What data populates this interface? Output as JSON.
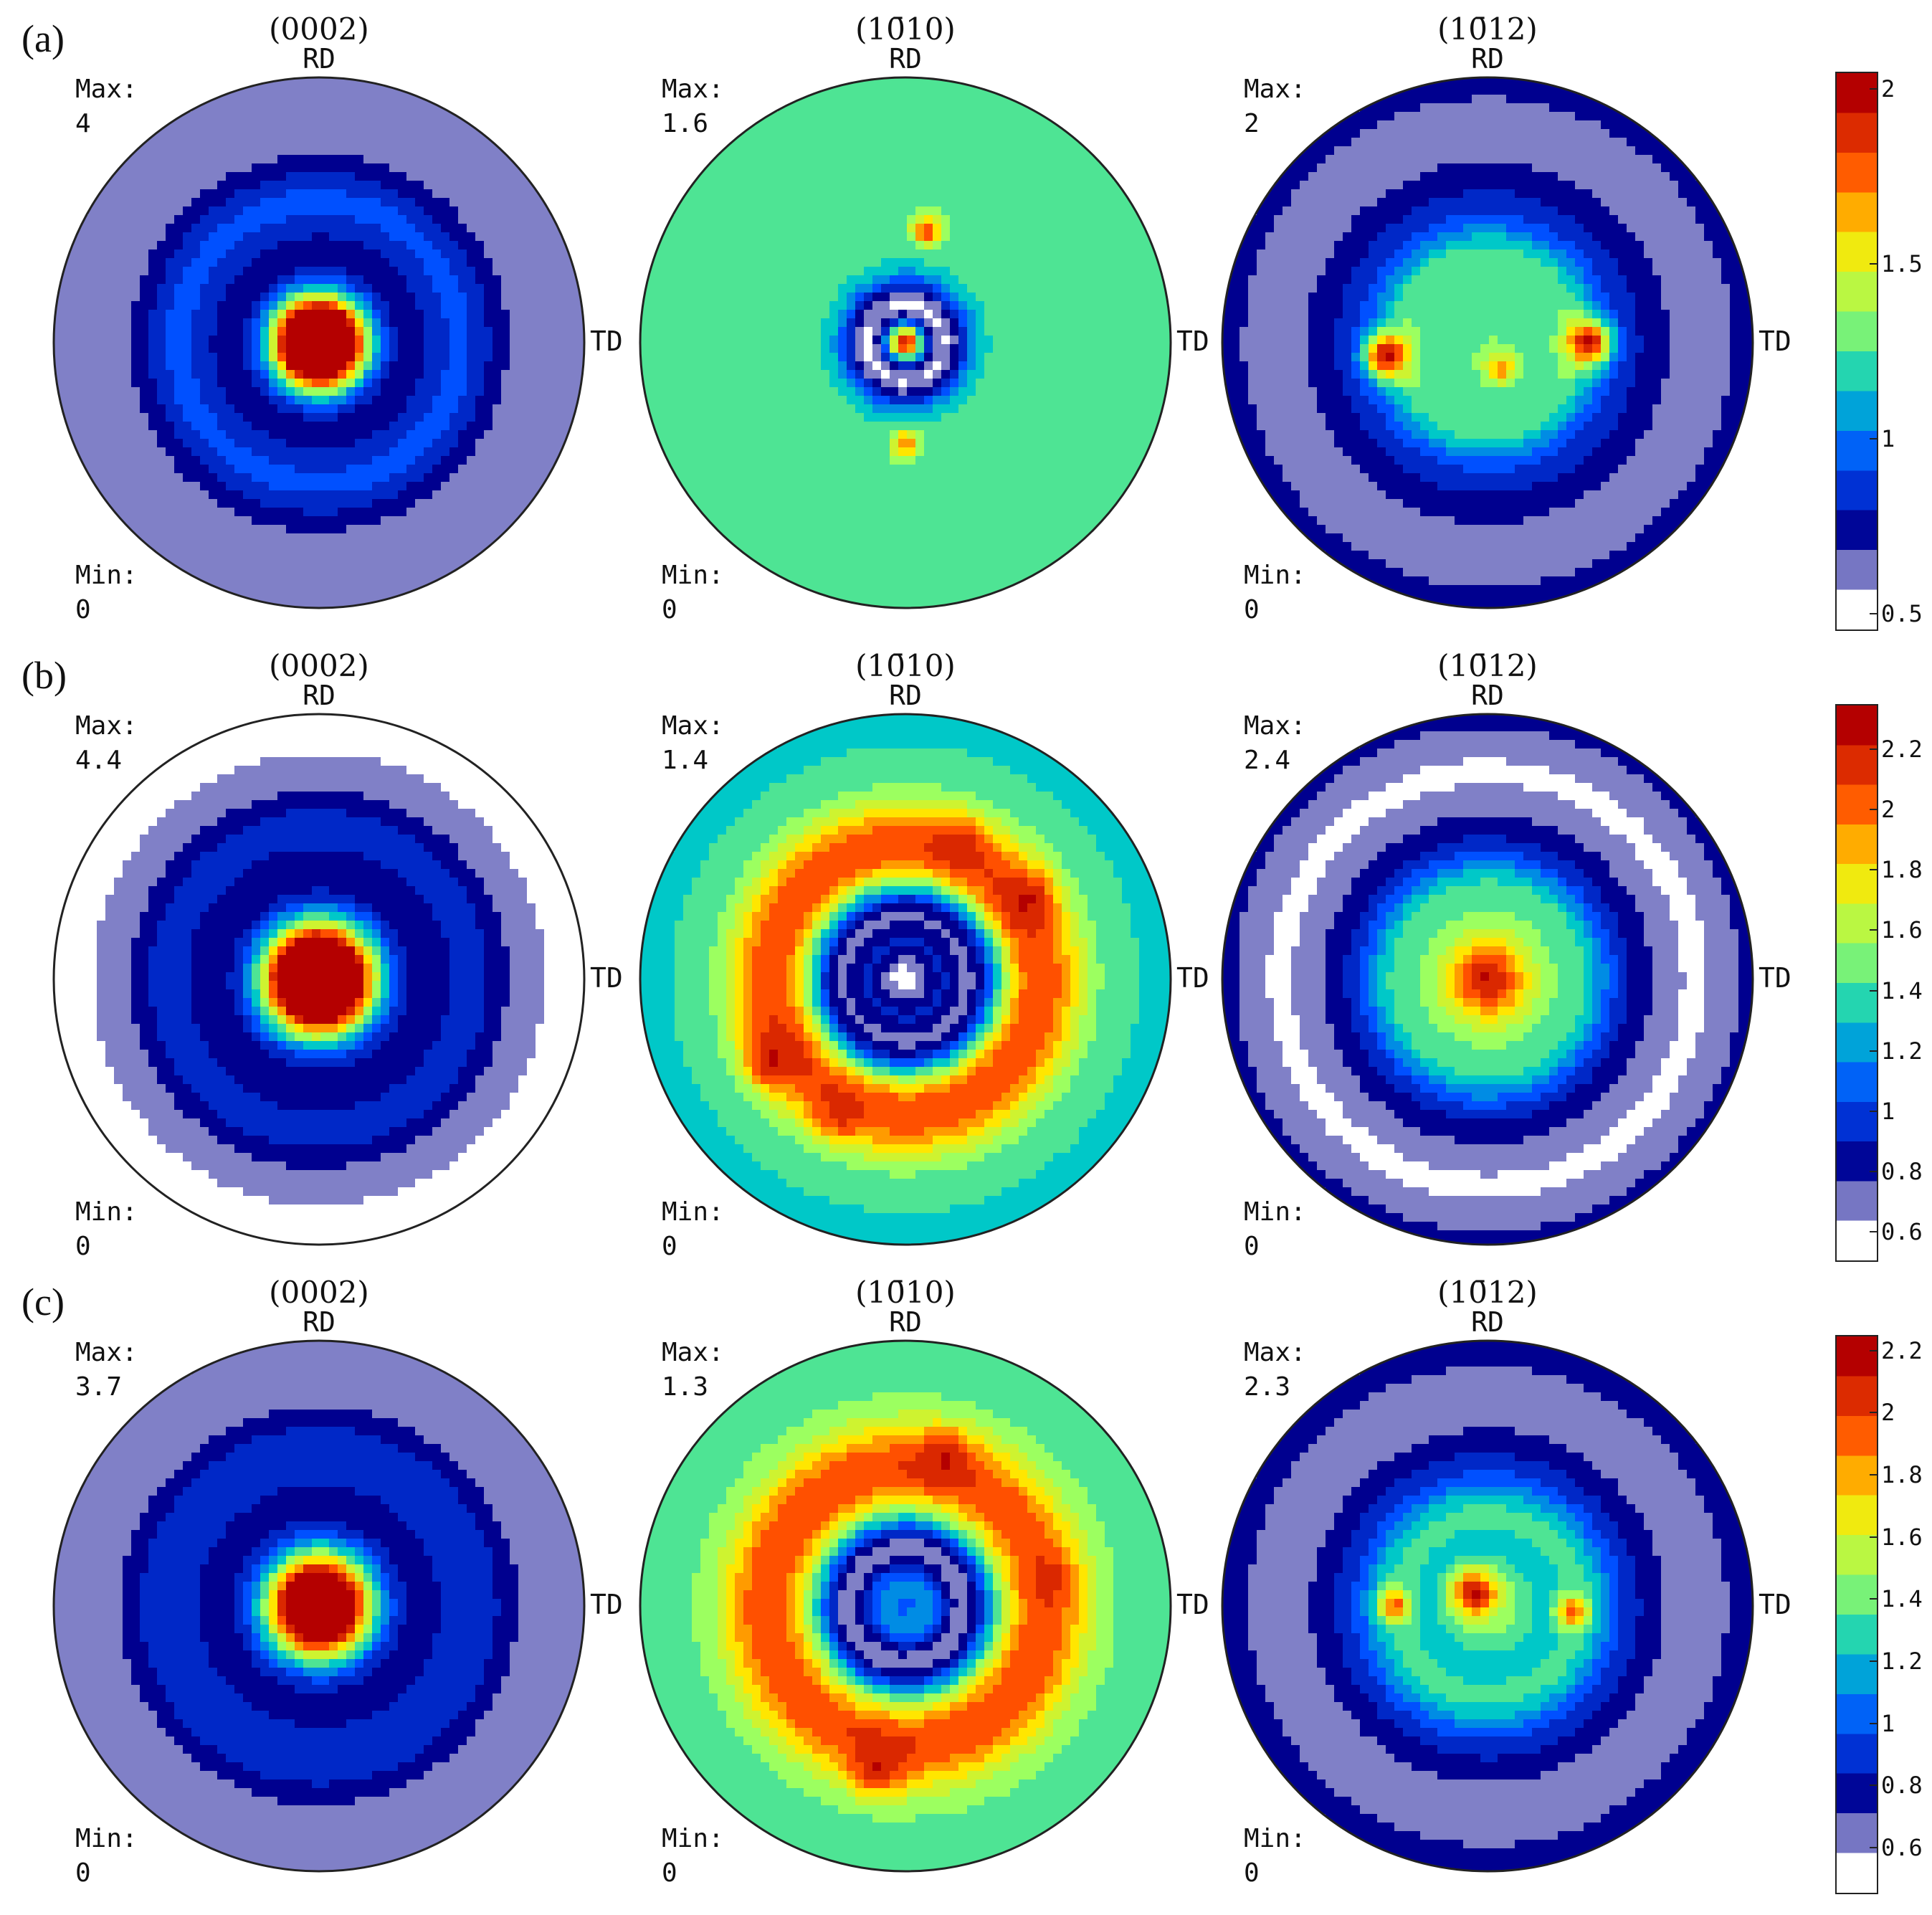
{
  "chart_data": {
    "type": "heatmap",
    "figure": "pole figures",
    "axis_labels": {
      "rd": "RD",
      "td": "TD"
    },
    "stat_labels": {
      "max": "Max:",
      "min": "Min:"
    },
    "colormap": [
      "#ffffff",
      "#00008f",
      "#0050ff",
      "#00c8c8",
      "#9cff60",
      "#ffe600",
      "#ff5000",
      "#b40000"
    ],
    "rows": [
      {
        "label": "(a)",
        "colorbar": {
          "min": 0.45,
          "max": 2.05,
          "ticks": [
            "0.5",
            "1",
            "1.5",
            "2"
          ],
          "tick_values": [
            0.5,
            1,
            1.5,
            2
          ]
        },
        "figures": [
          {
            "plane": "(0002)",
            "max": "4",
            "min": "0",
            "max_value": 4,
            "min_value": 0,
            "outer": 0.55,
            "ring": 0.75,
            "ring_r": 0.5,
            "dip": 0.7,
            "dip_r": 0.55,
            "pole": 4,
            "pole_w": 0.045,
            "spread": 0.12,
            "peaks": []
          },
          {
            "plane": "(10̄10)",
            "max": "1.6",
            "min": "0",
            "max_value": 1.6,
            "min_value": 0,
            "outer": 1.25,
            "ring": 1.3,
            "ring_r": 0.6,
            "dip": 0.3,
            "dip_r": 0.12,
            "pole": 2.0,
            "pole_w": 0.04,
            "spread": 0.05,
            "peaks": [
              [
                0.08,
                0.42,
                1.9,
                0.05
              ],
              [
                0.0,
                -0.38,
                1.75,
                0.05
              ]
            ]
          },
          {
            "plane": "(10̄12)",
            "max": "2",
            "min": "0",
            "max_value": 2,
            "min_value": 0,
            "outer": 0.7,
            "ring": 0.55,
            "ring_r": 0.78,
            "dip": 1.35,
            "dip_r": 0.3,
            "pole": 1.3,
            "pole_w": 0.2,
            "spread": 0.2,
            "peaks": [
              [
                -0.38,
                -0.05,
                2.05,
                0.08
              ],
              [
                0.38,
                0.0,
                2.05,
                0.08
              ],
              [
                0.05,
                -0.1,
                1.7,
                0.06
              ]
            ]
          }
        ]
      },
      {
        "label": "(b)",
        "colorbar": {
          "min": 0.5,
          "max": 2.35,
          "ticks": [
            "0.6",
            "0.8",
            "1",
            "1.2",
            "1.4",
            "1.6",
            "1.8",
            "2",
            "2.2"
          ],
          "tick_values": [
            0.6,
            0.8,
            1,
            1.2,
            1.4,
            1.6,
            1.8,
            2,
            2.2
          ]
        },
        "figures": [
          {
            "plane": "(0002)",
            "max": "4.4",
            "min": "0",
            "max_value": 4.4,
            "min_value": 0,
            "outer": 0.55,
            "ring": 0.8,
            "ring_r": 0.55,
            "dip": 0.65,
            "dip_r": 0.6,
            "pole": 4.4,
            "pole_w": 0.045,
            "spread": 0.16,
            "peaks": []
          },
          {
            "plane": "(10̄10)",
            "max": "1.4",
            "min": "0",
            "max_value": 1.4,
            "min_value": 0,
            "outer": 1.35,
            "ring": 2.15,
            "ring_r": 0.5,
            "dip": 0.5,
            "dip_r": 0.25,
            "pole": 0.5,
            "pole_w": 0.1,
            "spread": 0.05,
            "peaks": [
              [
                -0.5,
                -0.3,
                2.3,
                0.1
              ],
              [
                0.45,
                0.3,
                2.3,
                0.1
              ],
              [
                0.2,
                0.5,
                2.25,
                0.09
              ],
              [
                -0.25,
                -0.5,
                2.2,
                0.09
              ]
            ]
          },
          {
            "plane": "(10̄12)",
            "max": "2.4",
            "min": "0",
            "max_value": 2.4,
            "min_value": 0,
            "outer": 0.8,
            "ring": 0.55,
            "ring_r": 0.78,
            "dip": 1.25,
            "dip_r": 0.35,
            "pole": 2.3,
            "pole_w": 0.08,
            "spread": 0.2,
            "peaks": []
          }
        ]
      },
      {
        "label": "(c)",
        "colorbar": {
          "min": 0.45,
          "max": 2.25,
          "ticks": [
            "0.6",
            "0.8",
            "1",
            "1.2",
            "1.4",
            "1.6",
            "1.8",
            "2",
            "2.2"
          ],
          "tick_values": [
            0.6,
            0.8,
            1,
            1.2,
            1.4,
            1.6,
            1.8,
            2,
            2.2
          ]
        },
        "figures": [
          {
            "plane": "(0002)",
            "max": "3.7",
            "min": "0",
            "max_value": 3.7,
            "min_value": 0,
            "outer": 0.55,
            "ring": 0.8,
            "ring_r": 0.55,
            "dip": 0.65,
            "dip_r": 0.6,
            "pole": 3.7,
            "pole_w": 0.045,
            "spread": 0.15,
            "peaks": []
          },
          {
            "plane": "(10̄10)",
            "max": "1.3",
            "min": "0",
            "max_value": 1.3,
            "min_value": 0,
            "outer": 1.35,
            "ring": 2.05,
            "ring_r": 0.52,
            "dip": 0.45,
            "dip_r": 0.22,
            "pole": 1.0,
            "pole_w": 0.06,
            "spread": 0.05,
            "peaks": [
              [
                -0.1,
                -0.6,
                2.2,
                0.1
              ],
              [
                0.15,
                0.55,
                2.2,
                0.1
              ],
              [
                0.55,
                0.1,
                2.1,
                0.08
              ]
            ]
          },
          {
            "plane": "(10̄12)",
            "max": "2.3",
            "min": "0",
            "max_value": 2.3,
            "min_value": 0,
            "outer": 0.8,
            "ring": 0.55,
            "ring_r": 0.78,
            "dip": 1.3,
            "dip_r": 0.35,
            "pole": 1.5,
            "pole_w": 0.12,
            "spread": 0.2,
            "peaks": [
              [
                -0.05,
                0.05,
                2.25,
                0.08
              ],
              [
                -0.35,
                0.0,
                2.0,
                0.06
              ],
              [
                0.32,
                -0.02,
                2.0,
                0.06
              ]
            ]
          }
        ]
      }
    ]
  }
}
